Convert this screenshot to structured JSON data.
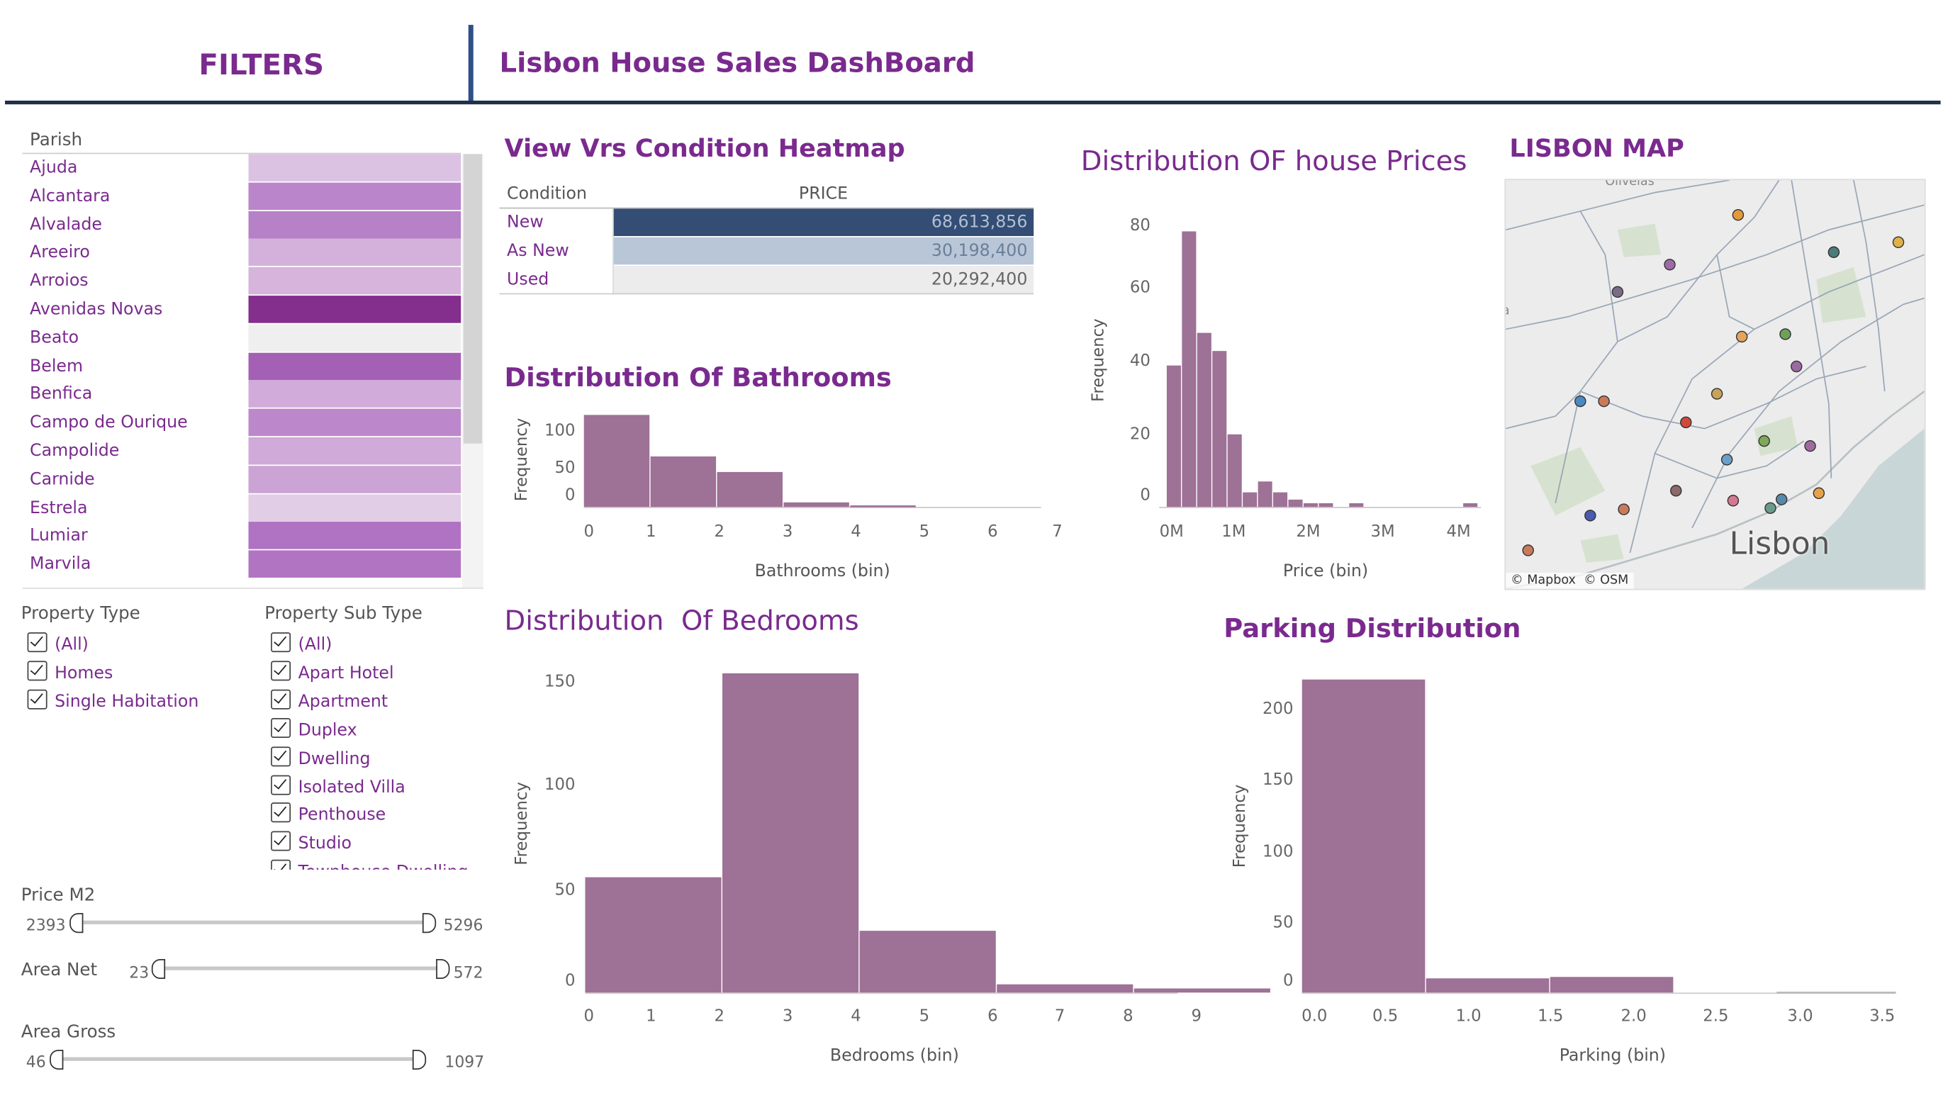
{
  "header": {
    "filters_title": "FILTERS",
    "dashboard_title": "Lisbon House Sales DashBoard"
  },
  "parish": {
    "label": "Parish",
    "items": [
      {
        "name": "Ajuda",
        "color": "#dcc2e2"
      },
      {
        "name": "Alcantara",
        "color": "#bb85cb"
      },
      {
        "name": "Alvalade",
        "color": "#b681c7"
      },
      {
        "name": "Areeiro",
        "color": "#d4b1db"
      },
      {
        "name": "Arroios",
        "color": "#d6b4dc"
      },
      {
        "name": "Avenidas Novas",
        "color": "#842e8e"
      },
      {
        "name": "Beato",
        "color": "#efefef"
      },
      {
        "name": "Belem",
        "color": "#a460b4"
      },
      {
        "name": "Benfica",
        "color": "#d1abd9"
      },
      {
        "name": "Campo de Ourique",
        "color": "#bc88cb"
      },
      {
        "name": "Campolide",
        "color": "#d0aad8"
      },
      {
        "name": "Carnide",
        "color": "#cca3d5"
      },
      {
        "name": "Estrela",
        "color": "#e2cde6"
      },
      {
        "name": "Lumiar",
        "color": "#b072c2"
      },
      {
        "name": "Marvila",
        "color": "#b174c3"
      }
    ]
  },
  "property_type": {
    "label": "Property Type",
    "options": [
      "(All)",
      "Homes",
      "Single Habitation"
    ]
  },
  "property_sub_type": {
    "label": "Property Sub Type",
    "options": [
      "(All)",
      "Apart Hotel",
      "Apartment",
      "Duplex",
      "Dwelling",
      "Isolated Villa",
      "Penthouse",
      "Studio",
      "Townhouse Dwelling"
    ]
  },
  "sliders": {
    "price_m2": {
      "label": "Price M2",
      "min": "2393",
      "max": "5296"
    },
    "area_net": {
      "label": "Area Net",
      "min": "23",
      "max": "572"
    },
    "area_gross": {
      "label": "Area Gross",
      "min": "46",
      "max": "1097"
    }
  },
  "heatmap": {
    "title": "View Vrs Condition Heatmap",
    "col_condition": "Condition",
    "col_price": "PRICE",
    "rows": [
      {
        "condition": "New",
        "price": "68,613,856",
        "color": "#334d74",
        "text_color": "#b0bfd4"
      },
      {
        "condition": "As New",
        "price": "30,198,400",
        "color": "#b8c6d8",
        "text_color": "#6b7f99"
      },
      {
        "condition": "Used",
        "price": "20,292,400",
        "color": "#ececec",
        "text_color": "#666666"
      }
    ]
  },
  "map": {
    "title": "LISBON MAP",
    "city_label": "Lisbon",
    "attribution": "© Mapbox  © OSM",
    "dot_colors": [
      "#c77b5b",
      "#7a6b87",
      "#9c6aa6",
      "#e39a3c",
      "#e3a55c",
      "#9a6ba0",
      "#4b7c7a",
      "#6ea05a",
      "#d04a3c",
      "#c9a35a",
      "#7ea85a",
      "#8a6a6a",
      "#6aa0c8",
      "#d47890",
      "#c97b5b",
      "#e6a24a",
      "#5a88a8",
      "#6a9a8a",
      "#4a5ab0",
      "#4a8ac0",
      "#e0b04a",
      "#a06aa0"
    ]
  },
  "colors": {
    "bar": "#9e7196",
    "title": "#7a2a8e"
  },
  "charts": {
    "bathrooms": {
      "title": "Distribution Of Bathrooms",
      "xlabel": "Bathrooms (bin)",
      "ylabel": "Frequency"
    },
    "prices": {
      "title": "Distribution OF house Prices",
      "xlabel": "Price (bin)",
      "ylabel": "Frequency"
    },
    "bedrooms": {
      "title": "Distribution  Of Bedrooms",
      "xlabel": "Bedrooms (bin)",
      "ylabel": "Frequency"
    },
    "parking": {
      "title": "Parking Distribution",
      "xlabel": "Parking (bin)",
      "ylabel": "Frequency"
    }
  },
  "chart_data": [
    {
      "type": "bar",
      "title": "Distribution Of Bathrooms",
      "xlabel": "Bathrooms (bin)",
      "ylabel": "Frequency",
      "bins": [
        0,
        1,
        2,
        3,
        4,
        5
      ],
      "values": [
        124,
        68,
        47,
        6,
        2,
        0
      ],
      "xticks": [
        "0",
        "1",
        "2",
        "3",
        "4",
        "5",
        "6",
        "7"
      ],
      "yticks": [
        "0",
        "50",
        "100"
      ],
      "xlim": [
        0,
        7
      ],
      "ylim": [
        0,
        124
      ]
    },
    {
      "type": "bar",
      "title": "Distribution OF house Prices",
      "xlabel": "Price (bin)",
      "ylabel": "Frequency",
      "bin_starts": [
        0,
        200000,
        400000,
        600000,
        800000,
        1000000,
        1200000,
        1400000,
        1600000,
        1800000,
        2000000,
        2400000,
        3900000
      ],
      "bin_width": 200000,
      "values": [
        39,
        76,
        48,
        43,
        20,
        4,
        7,
        4,
        2,
        1,
        1,
        1,
        1
      ],
      "xticks": [
        "0M",
        "1M",
        "2M",
        "3M",
        "4M"
      ],
      "yticks": [
        "0",
        "20",
        "40",
        "60",
        "80"
      ],
      "xlim": [
        -100000,
        4100000
      ],
      "ylim": [
        0,
        85
      ]
    },
    {
      "type": "bar",
      "title": "Distribution  Of Bedrooms",
      "xlabel": "Bedrooms (bin)",
      "ylabel": "Frequency",
      "bins": [
        0,
        2,
        4,
        6,
        8
      ],
      "bin_width": 2,
      "values": [
        56,
        155,
        30,
        4,
        2
      ],
      "xticks": [
        "0",
        "1",
        "2",
        "3",
        "4",
        "5",
        "6",
        "7",
        "8",
        "9"
      ],
      "yticks": [
        "0",
        "50",
        "100",
        "150"
      ],
      "xlim": [
        0,
        9
      ],
      "ylim": [
        0,
        155
      ]
    },
    {
      "type": "bar",
      "title": "Parking Distribution",
      "xlabel": "Parking (bin)",
      "ylabel": "Frequency",
      "bins": [
        0.0,
        0.75,
        1.5,
        2.25,
        3.0
      ],
      "bin_width": 0.75,
      "values": [
        220,
        10,
        11,
        0,
        0
      ],
      "xticks": [
        "0.0",
        "0.5",
        "1.0",
        "1.5",
        "2.0",
        "2.5",
        "3.0",
        "3.5"
      ],
      "yticks": [
        "0",
        "50",
        "100",
        "150",
        "200"
      ],
      "xlim": [
        0,
        3.5
      ],
      "ylim": [
        0,
        220
      ]
    }
  ]
}
